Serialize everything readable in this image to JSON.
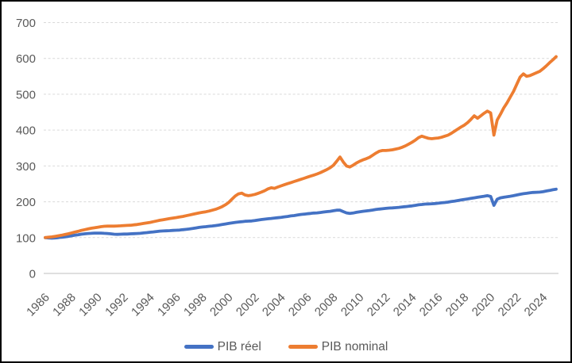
{
  "chart_data": {
    "type": "line",
    "title": "",
    "xlabel": "",
    "ylabel": "",
    "x_start": 1986,
    "x_end": 2025,
    "x_step_years": 0.25,
    "frequency": "quarterly",
    "xticks": [
      1986,
      1988,
      1990,
      1992,
      1994,
      1996,
      1998,
      2000,
      2002,
      2004,
      2006,
      2008,
      2010,
      2012,
      2014,
      2016,
      2018,
      2020,
      2022,
      2024
    ],
    "yticks": [
      0,
      100,
      200,
      300,
      400,
      500,
      600,
      700
    ],
    "ylim": [
      0,
      700
    ],
    "grid": "horizontal-dashed",
    "legend_position": "bottom-center",
    "background": "#FFFFFF",
    "gridline_color": "#D9D9D9",
    "baseline_color": "#BFBFBF",
    "tick_label_color": "#595959",
    "frame_border_color": "#000000",
    "series": [
      {
        "name": "PIB réel",
        "color": "#4472C4",
        "values": [
          100,
          99,
          98.5,
          99,
          100,
          101,
          102,
          103.5,
          105,
          106.5,
          108,
          109.5,
          110.5,
          111.5,
          112,
          112.5,
          112.5,
          112.5,
          112,
          111.5,
          110.5,
          109.5,
          109,
          109.5,
          110,
          110,
          110.5,
          111,
          111.5,
          112,
          113,
          114,
          115,
          116,
          117,
          118,
          118.5,
          119,
          119.5,
          120,
          120.5,
          121,
          122,
          123,
          124,
          125.5,
          127,
          128.5,
          129.5,
          130.5,
          131.5,
          132.5,
          133.5,
          135,
          136.5,
          138,
          139.5,
          141,
          142.5,
          143.5,
          144.5,
          145.5,
          146,
          146.5,
          147.5,
          149,
          150.5,
          151.5,
          152.5,
          153.5,
          154.5,
          155.5,
          156.5,
          158,
          159,
          160.5,
          161.5,
          163,
          164.5,
          165.5,
          166.5,
          167.5,
          168.5,
          169,
          170,
          171.5,
          172.5,
          173.5,
          175,
          176.5,
          176.5,
          172.5,
          169,
          167.5,
          168.5,
          170.5,
          172,
          173.5,
          174.5,
          175.5,
          177,
          178.5,
          179.5,
          180.5,
          181.5,
          182.5,
          183,
          183.5,
          184.5,
          185.5,
          186.5,
          187.5,
          188.5,
          190,
          191.5,
          192.5,
          193.5,
          194,
          194.5,
          195,
          196,
          197,
          198,
          199,
          200.5,
          202,
          203.5,
          205,
          206.5,
          208,
          209.5,
          211,
          212.5,
          214,
          215.5,
          217,
          215,
          190,
          207,
          211,
          212.5,
          214,
          215.5,
          217,
          219,
          221,
          222.5,
          223.5,
          225,
          226,
          226.5,
          227,
          228,
          230,
          231.5,
          233.5,
          235
        ]
      },
      {
        "name": "PIB nominal",
        "color": "#ED7D31",
        "values": [
          100,
          101,
          102,
          103.5,
          105,
          106.5,
          108.5,
          110.5,
          113,
          115.5,
          117.5,
          120,
          122,
          124,
          126,
          127.5,
          129,
          130.5,
          131.5,
          132,
          132,
          132,
          132.5,
          133,
          133.5,
          134,
          134.5,
          135.5,
          136.5,
          138,
          139.5,
          141,
          142.5,
          144.5,
          146.5,
          148.5,
          150,
          151.5,
          153,
          154.5,
          156,
          157.5,
          159,
          161,
          163,
          165,
          167,
          169,
          170.5,
          172,
          174,
          176.5,
          179,
          182.5,
          186.5,
          191.5,
          198,
          207,
          216,
          222,
          224,
          219,
          217,
          218.5,
          220.5,
          223.5,
          227,
          231,
          236,
          239,
          237.5,
          241,
          244.5,
          247.5,
          250.5,
          253.5,
          256.5,
          259.5,
          262.5,
          265.5,
          268.5,
          271.5,
          274.5,
          277.5,
          281,
          285.5,
          290,
          295,
          302,
          313,
          325,
          311,
          300,
          297,
          302,
          308,
          313,
          317,
          320,
          324,
          330,
          336,
          341,
          343,
          343,
          344,
          345,
          347,
          349,
          352,
          356,
          361,
          366,
          372,
          379,
          383,
          380,
          377,
          376,
          377,
          378,
          380,
          383,
          386,
          391,
          397,
          403,
          409,
          414,
          421,
          430,
          440,
          433,
          440,
          447,
          453,
          448,
          386,
          428,
          444,
          462,
          476,
          492,
          508,
          528,
          548,
          557,
          550,
          552,
          556,
          560,
          564,
          571,
          579,
          588,
          596,
          605
        ]
      }
    ]
  },
  "legend": {
    "items": [
      {
        "label": "PIB réel",
        "color": "#4472C4"
      },
      {
        "label": "PIB nominal",
        "color": "#ED7D31"
      }
    ]
  }
}
